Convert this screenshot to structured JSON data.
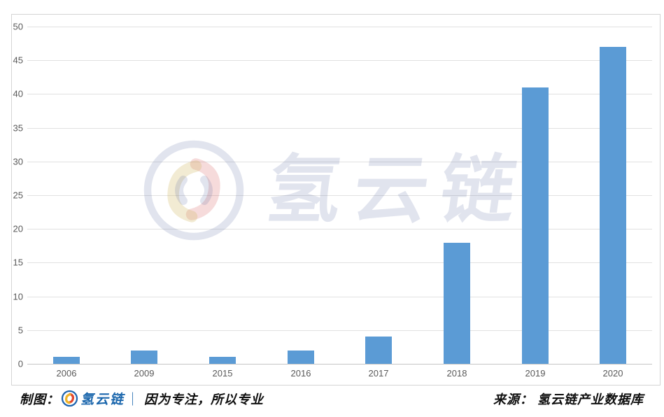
{
  "chart_data": {
    "type": "bar",
    "categories": [
      "2006",
      "2009",
      "2015",
      "2016",
      "2017",
      "2018",
      "2019",
      "2020"
    ],
    "values": [
      1,
      2,
      1,
      2,
      4,
      18,
      41,
      47
    ],
    "title": "",
    "xlabel": "",
    "ylabel": "",
    "ylim": [
      0,
      50
    ],
    "yticks": [
      0,
      5,
      10,
      15,
      20,
      25,
      30,
      35,
      40,
      45,
      50
    ],
    "grid": true,
    "legend": "none",
    "bar_color": "#5B9BD5",
    "gridline_color": "#E1E1E1",
    "tick_label_color": "#595959"
  },
  "watermark": {
    "text": "氢云链",
    "logo_icon": "hydrogen-cloud-chain-logo",
    "color": "#DCE1ED"
  },
  "footer": {
    "left": {
      "prefix": "制图：",
      "logo_icon": "hydrogen-cloud-chain-logo",
      "brand": "氢云链",
      "separator": "｜",
      "slogan": "因为专注，所以专业"
    },
    "right": {
      "source": "来源： 氢云链产业数据库"
    },
    "brand_color": "#1A66AC"
  }
}
